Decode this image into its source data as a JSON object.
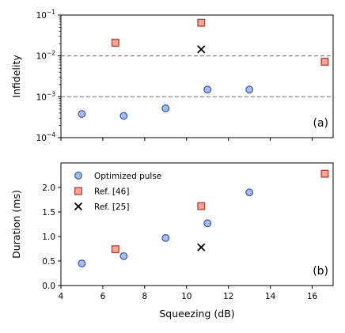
{
  "chart_data": [
    {
      "type": "scatter",
      "panel_label": "(a)",
      "ylabel": "Infidelity",
      "xlabel": "",
      "yscale": "log",
      "xlim": [
        4,
        17
      ],
      "ylim": [
        0.0001,
        0.1
      ],
      "yticks": [
        {
          "value": 0.1,
          "base": "10",
          "exp": "−1"
        },
        {
          "value": 0.01,
          "base": "10",
          "exp": "−2"
        },
        {
          "value": 0.001,
          "base": "10",
          "exp": "−3"
        },
        {
          "value": 0.0001,
          "base": "10",
          "exp": "−4"
        }
      ],
      "reference_lines": [
        0.01,
        0.001
      ],
      "series": [
        {
          "key": "optimized",
          "marker": "circle",
          "x": [
            5,
            7,
            9,
            11,
            13
          ],
          "y": [
            0.00038,
            0.00034,
            0.00052,
            0.0015,
            0.0015
          ]
        },
        {
          "key": "ref46",
          "marker": "square",
          "x": [
            6.6,
            10.7,
            16.6
          ],
          "y": [
            0.021,
            0.065,
            0.0072
          ]
        },
        {
          "key": "ref25",
          "marker": "x",
          "x": [
            10.7
          ],
          "y": [
            0.0145
          ]
        }
      ]
    },
    {
      "type": "scatter",
      "panel_label": "(b)",
      "ylabel": "Duration (ms)",
      "xlabel": "Squeezing (dB)",
      "yscale": "linear",
      "xlim": [
        4,
        17
      ],
      "ylim": [
        0,
        2.5
      ],
      "yticks": [
        {
          "value": 0.0,
          "label": "0.0"
        },
        {
          "value": 0.5,
          "label": "0.5"
        },
        {
          "value": 1.0,
          "label": "1.0"
        },
        {
          "value": 1.5,
          "label": "1.5"
        },
        {
          "value": 2.0,
          "label": "2.0"
        }
      ],
      "xticks": [
        {
          "value": 4,
          "label": "4"
        },
        {
          "value": 6,
          "label": "6"
        },
        {
          "value": 8,
          "label": "8"
        },
        {
          "value": 10,
          "label": "10"
        },
        {
          "value": 12,
          "label": "12"
        },
        {
          "value": 14,
          "label": "14"
        },
        {
          "value": 16,
          "label": "16"
        }
      ],
      "legend": {
        "position": "top-left"
      },
      "series": [
        {
          "key": "optimized",
          "name": "Optimized pulse",
          "marker": "circle",
          "x": [
            5,
            7,
            9,
            11,
            13
          ],
          "y": [
            0.45,
            0.6,
            0.97,
            1.27,
            1.9
          ]
        },
        {
          "key": "ref46",
          "name": "Ref. [46]",
          "marker": "square",
          "x": [
            6.6,
            10.7,
            16.6
          ],
          "y": [
            0.74,
            1.62,
            2.28
          ]
        },
        {
          "key": "ref25",
          "name": "Ref. [25]",
          "marker": "x",
          "x": [
            10.7
          ],
          "y": [
            0.78
          ]
        }
      ]
    }
  ],
  "colors": {
    "optimized_fill": "#a9bde6",
    "optimized_edge": "#3a5fb8",
    "ref46_fill": "#f1a898",
    "ref46_edge": "#bb3a2a",
    "ref25": "#000000",
    "reference_line": "#808080"
  }
}
